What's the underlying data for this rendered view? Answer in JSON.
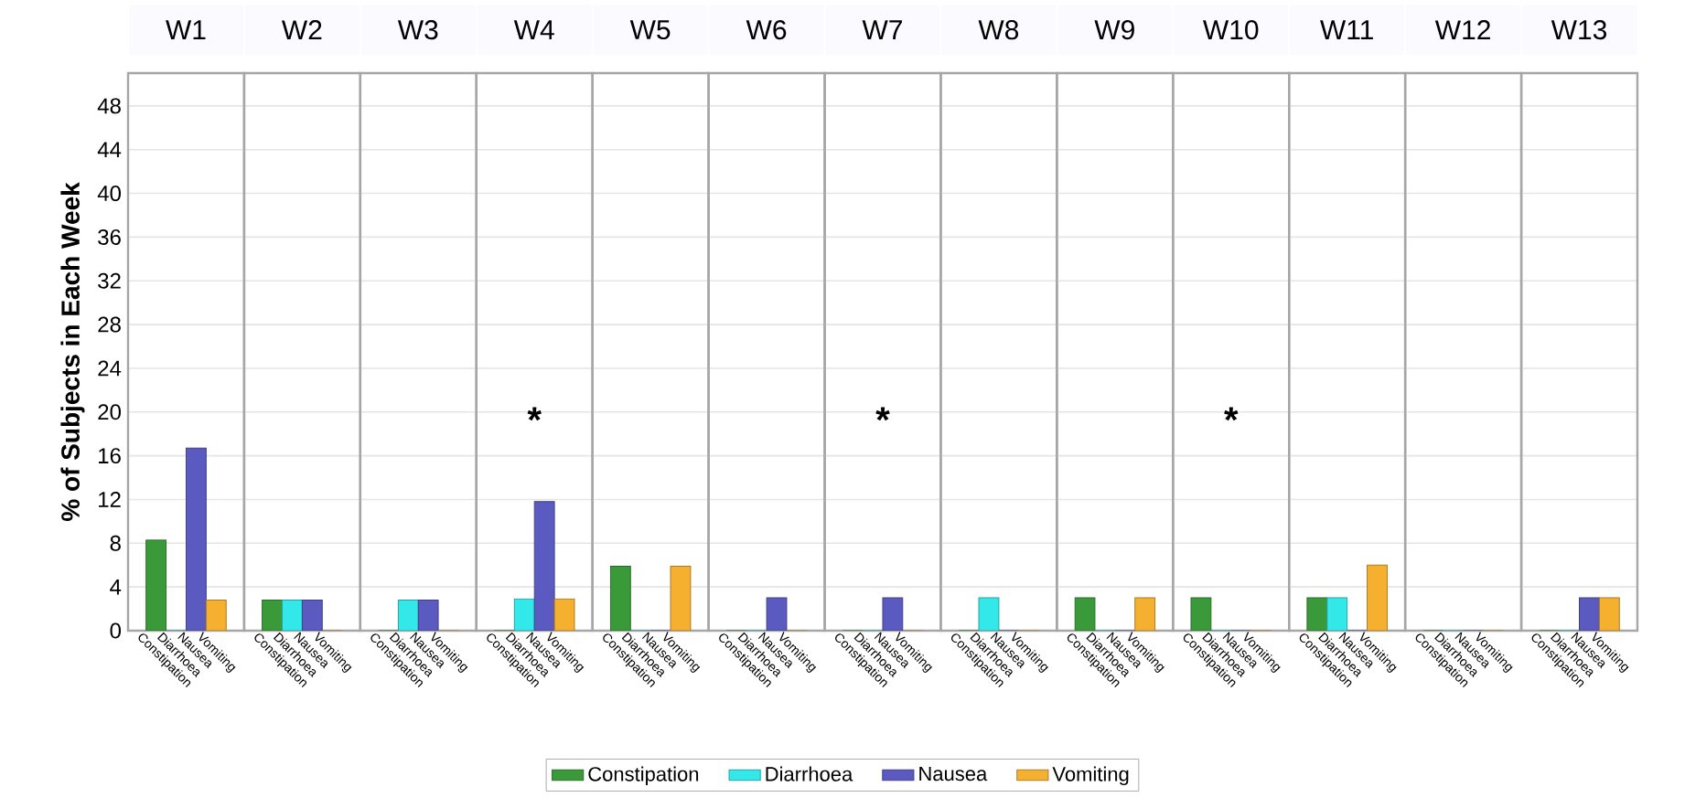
{
  "chart_data": [
    {
      "type": "bar",
      "title": "W1",
      "ylabel": "% of Subjects in Each Week",
      "categories": [
        "Constipation",
        "Diarrhoea",
        "Nausea",
        "Vomiting"
      ],
      "ylim": [
        0,
        51
      ],
      "yticks": [
        0,
        4,
        8,
        12,
        16,
        20,
        24,
        28,
        32,
        36,
        40,
        44,
        48
      ],
      "grid": "y",
      "legend": "bottom",
      "series": [
        {
          "name": "Constipation",
          "color": "#3a9a3a",
          "values": [
            8.3,
            null,
            null,
            null
          ]
        },
        {
          "name": "Diarrhoea",
          "color": "#33e8e8",
          "values": [
            null,
            0,
            null,
            null
          ]
        },
        {
          "name": "Nausea",
          "color": "#5a5ac0",
          "values": [
            null,
            null,
            16.7,
            null
          ]
        },
        {
          "name": "Vomiting",
          "color": "#f5b030",
          "values": [
            null,
            null,
            null,
            2.8
          ]
        }
      ]
    },
    {
      "type": "bar",
      "title": "W2",
      "categories": [
        "Constipation",
        "Diarrhoea",
        "Nausea",
        "Vomiting"
      ],
      "ylim": [
        0,
        51
      ],
      "yticks": [
        0,
        4,
        8,
        12,
        16,
        20,
        24,
        28,
        32,
        36,
        40,
        44,
        48
      ],
      "grid": "y",
      "tick_labels": "x",
      "series": [
        {
          "color": "#3a9a3a",
          "values": [
            2.8,
            null,
            null,
            null
          ]
        },
        {
          "color": "#33e8e8",
          "values": [
            null,
            2.8,
            null,
            null
          ]
        },
        {
          "color": "#5a5ac0",
          "values": [
            null,
            null,
            2.8,
            null
          ]
        },
        {
          "color": "#f5b030",
          "values": [
            null,
            null,
            null,
            0
          ]
        }
      ]
    },
    {
      "type": "bar",
      "title": "W3",
      "categories": [
        "Constipation",
        "Diarrhoea",
        "Nausea",
        "Vomiting"
      ],
      "ylim": [
        0,
        51
      ],
      "yticks": [
        0,
        4,
        8,
        12,
        16,
        20,
        24,
        28,
        32,
        36,
        40,
        44,
        48
      ],
      "grid": "y",
      "tick_labels": "x",
      "series": [
        {
          "color": "#3a9a3a",
          "values": [
            0,
            null,
            null,
            null
          ]
        },
        {
          "color": "#33e8e8",
          "values": [
            null,
            2.8,
            null,
            null
          ]
        },
        {
          "color": "#5a5ac0",
          "values": [
            null,
            null,
            2.8,
            null
          ]
        },
        {
          "color": "#f5b030",
          "values": [
            null,
            null,
            null,
            0
          ]
        }
      ]
    },
    {
      "type": "bar",
      "title": "W4",
      "categories": [
        "Constipation",
        "Diarrhoea",
        "Nausea",
        "Vomiting"
      ],
      "ylim": [
        0,
        51
      ],
      "yticks": [
        0,
        4,
        8,
        12,
        16,
        20,
        24,
        28,
        32,
        36,
        40,
        44,
        48
      ],
      "grid": "y",
      "tick_labels": "x",
      "annotations": [
        "*"
      ],
      "series": [
        {
          "color": "#3a9a3a",
          "values": [
            0,
            null,
            null,
            null
          ]
        },
        {
          "color": "#33e8e8",
          "values": [
            null,
            2.9,
            null,
            null
          ]
        },
        {
          "color": "#5a5ac0",
          "values": [
            null,
            null,
            11.8,
            null
          ]
        },
        {
          "color": "#f5b030",
          "values": [
            null,
            null,
            null,
            2.9
          ]
        }
      ]
    },
    {
      "type": "bar",
      "title": "W5",
      "categories": [
        "Constipation",
        "Diarrhoea",
        "Nausea",
        "Vomiting"
      ],
      "ylim": [
        0,
        51
      ],
      "yticks": [
        0,
        4,
        8,
        12,
        16,
        20,
        24,
        28,
        32,
        36,
        40,
        44,
        48
      ],
      "grid": "y",
      "tick_labels": "x",
      "series": [
        {
          "color": "#3a9a3a",
          "values": [
            5.9,
            null,
            null,
            null
          ]
        },
        {
          "color": "#33e8e8",
          "values": [
            null,
            0,
            null,
            null
          ]
        },
        {
          "color": "#5a5ac0",
          "values": [
            null,
            null,
            0,
            null
          ]
        },
        {
          "color": "#f5b030",
          "values": [
            null,
            null,
            null,
            5.9
          ]
        }
      ]
    },
    {
      "type": "bar",
      "title": "W6",
      "categories": [
        "Constipation",
        "Diarrhoea",
        "Nausea",
        "Vomiting"
      ],
      "ylim": [
        0,
        51
      ],
      "yticks": [
        0,
        4,
        8,
        12,
        16,
        20,
        24,
        28,
        32,
        36,
        40,
        44,
        48
      ],
      "grid": "y",
      "tick_labels": "x",
      "series": [
        {
          "color": "#3a9a3a",
          "values": [
            0,
            null,
            null,
            null
          ]
        },
        {
          "color": "#33e8e8",
          "values": [
            null,
            0,
            null,
            null
          ]
        },
        {
          "color": "#5a5ac0",
          "values": [
            null,
            null,
            3,
            null
          ]
        },
        {
          "color": "#f5b030",
          "values": [
            null,
            null,
            null,
            0
          ]
        }
      ]
    },
    {
      "type": "bar",
      "title": "W7",
      "categories": [
        "Constipation",
        "Diarrhoea",
        "Nausea",
        "Vomiting"
      ],
      "ylim": [
        0,
        51
      ],
      "yticks": [
        0,
        4,
        8,
        12,
        16,
        20,
        24,
        28,
        32,
        36,
        40,
        44,
        48
      ],
      "grid": "y",
      "tick_labels": "x",
      "annotations": [
        "*"
      ],
      "series": [
        {
          "color": "#3a9a3a",
          "values": [
            0,
            null,
            null,
            null
          ]
        },
        {
          "color": "#33e8e8",
          "values": [
            null,
            0,
            null,
            null
          ]
        },
        {
          "color": "#5a5ac0",
          "values": [
            null,
            null,
            3,
            null
          ]
        },
        {
          "color": "#f5b030",
          "values": [
            null,
            null,
            null,
            0
          ]
        }
      ]
    },
    {
      "type": "bar",
      "title": "W8",
      "categories": [
        "Constipation",
        "Diarrhoea",
        "Nausea",
        "Vomiting"
      ],
      "ylim": [
        0,
        51
      ],
      "yticks": [
        0,
        4,
        8,
        12,
        16,
        20,
        24,
        28,
        32,
        36,
        40,
        44,
        48
      ],
      "grid": "y",
      "tick_labels": "x",
      "series": [
        {
          "color": "#3a9a3a",
          "values": [
            0,
            null,
            null,
            null
          ]
        },
        {
          "color": "#33e8e8",
          "values": [
            null,
            3,
            null,
            null
          ]
        },
        {
          "color": "#5a5ac0",
          "values": [
            null,
            null,
            0,
            null
          ]
        },
        {
          "color": "#f5b030",
          "values": [
            null,
            null,
            null,
            0
          ]
        }
      ]
    },
    {
      "type": "bar",
      "title": "W9",
      "categories": [
        "Constipation",
        "Diarrhoea",
        "Nausea",
        "Vomiting"
      ],
      "ylim": [
        0,
        51
      ],
      "yticks": [
        0,
        4,
        8,
        12,
        16,
        20,
        24,
        28,
        32,
        36,
        40,
        44,
        48
      ],
      "grid": "y",
      "tick_labels": "x",
      "series": [
        {
          "color": "#3a9a3a",
          "values": [
            3,
            null,
            null,
            null
          ]
        },
        {
          "color": "#33e8e8",
          "values": [
            null,
            0,
            null,
            null
          ]
        },
        {
          "color": "#5a5ac0",
          "values": [
            null,
            null,
            0,
            null
          ]
        },
        {
          "color": "#f5b030",
          "values": [
            null,
            null,
            null,
            3
          ]
        }
      ]
    },
    {
      "type": "bar",
      "title": "W10",
      "categories": [
        "Constipation",
        "Diarrhoea",
        "Nausea",
        "Vomiting"
      ],
      "ylim": [
        0,
        51
      ],
      "yticks": [
        0,
        4,
        8,
        12,
        16,
        20,
        24,
        28,
        32,
        36,
        40,
        44,
        48
      ],
      "grid": "y",
      "tick_labels": "x",
      "annotations": [
        "*"
      ],
      "series": [
        {
          "color": "#3a9a3a",
          "values": [
            3,
            null,
            null,
            null
          ]
        },
        {
          "color": "#33e8e8",
          "values": [
            null,
            0,
            null,
            null
          ]
        },
        {
          "color": "#5a5ac0",
          "values": [
            null,
            null,
            0,
            null
          ]
        },
        {
          "color": "#f5b030",
          "values": [
            null,
            null,
            null,
            0
          ]
        }
      ]
    },
    {
      "type": "bar",
      "title": "W11",
      "categories": [
        "Constipation",
        "Diarrhoea",
        "Nausea",
        "Vomiting"
      ],
      "ylim": [
        0,
        51
      ],
      "yticks": [
        0,
        4,
        8,
        12,
        16,
        20,
        24,
        28,
        32,
        36,
        40,
        44,
        48
      ],
      "grid": "y",
      "tick_labels": "x",
      "series": [
        {
          "color": "#3a9a3a",
          "values": [
            3,
            null,
            null,
            null
          ]
        },
        {
          "color": "#33e8e8",
          "values": [
            null,
            3,
            null,
            null
          ]
        },
        {
          "color": "#5a5ac0",
          "values": [
            null,
            null,
            0,
            null
          ]
        },
        {
          "color": "#f5b030",
          "values": [
            null,
            null,
            null,
            6
          ]
        }
      ]
    },
    {
      "type": "bar",
      "title": "W12",
      "categories": [
        "Constipation",
        "Diarrhoea",
        "Nausea",
        "Vomiting"
      ],
      "ylim": [
        0,
        51
      ],
      "yticks": [
        0,
        4,
        8,
        12,
        16,
        20,
        24,
        28,
        32,
        36,
        40,
        44,
        48
      ],
      "grid": "y",
      "tick_labels": "x",
      "series": [
        {
          "color": "#3a9a3a",
          "values": [
            0,
            null,
            null,
            null
          ]
        },
        {
          "color": "#33e8e8",
          "values": [
            null,
            0,
            null,
            null
          ]
        },
        {
          "color": "#5a5ac0",
          "values": [
            null,
            null,
            0,
            null
          ]
        },
        {
          "color": "#f5b030",
          "values": [
            null,
            null,
            null,
            0
          ]
        }
      ]
    },
    {
      "type": "bar",
      "title": "W13",
      "categories": [
        "Constipation",
        "Diarrhoea",
        "Nausea",
        "Vomiting"
      ],
      "ylim": [
        0,
        51
      ],
      "yticks": [
        0,
        4,
        8,
        12,
        16,
        20,
        24,
        28,
        32,
        36,
        40,
        44,
        48
      ],
      "grid": "y",
      "tick_labels": "x",
      "series": [
        {
          "color": "#3a9a3a",
          "values": [
            0,
            null,
            null,
            null
          ]
        },
        {
          "color": "#33e8e8",
          "values": [
            null,
            0,
            null,
            null
          ]
        },
        {
          "color": "#5a5ac0",
          "values": [
            null,
            null,
            3,
            null
          ]
        },
        {
          "color": "#f5b030",
          "values": [
            null,
            null,
            null,
            3
          ]
        }
      ]
    }
  ]
}
